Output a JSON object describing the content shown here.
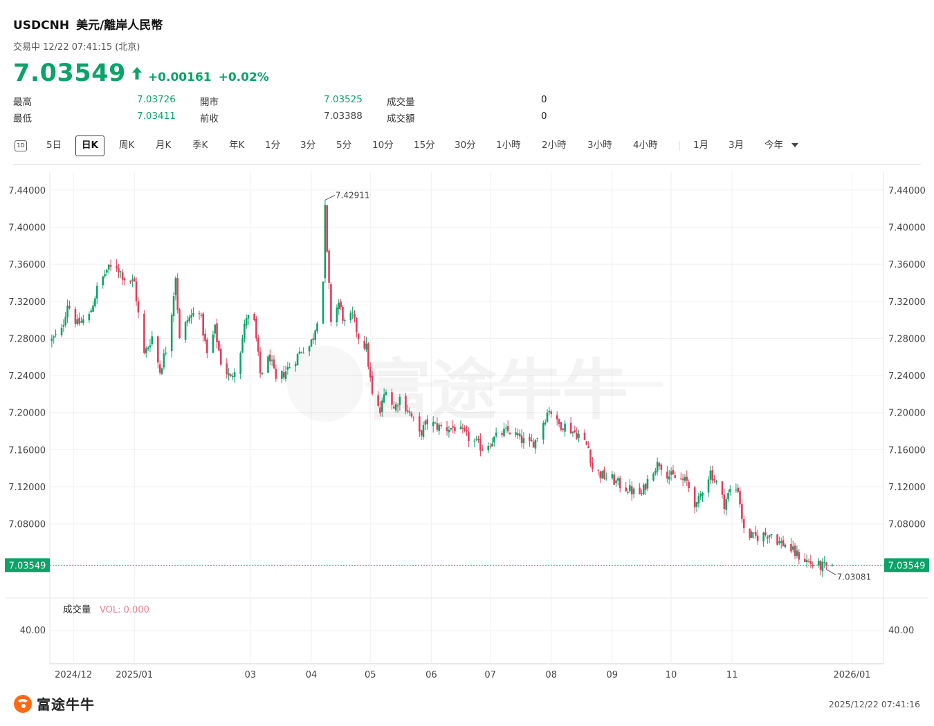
{
  "header": {
    "symbol": "USDCNH",
    "name": "美元/離岸人民幣",
    "status": "交易中 12/22 07:41:15 (北京)",
    "price": "7.03549",
    "change": "+0.00161",
    "change_pct": "+0.02%",
    "up_color": "#0ba367",
    "down_color": "#e23d5b"
  },
  "stats": [
    {
      "label": "最高",
      "value": "7.03726",
      "tone": "green"
    },
    {
      "label": "最低",
      "value": "7.03411",
      "tone": "green"
    },
    {
      "label": "開市",
      "value": "7.03525",
      "tone": "green"
    },
    {
      "label": "前收",
      "value": "7.03388",
      "tone": "gray"
    },
    {
      "label": "成交量",
      "value": "0",
      "tone": "dark"
    },
    {
      "label": "成交額",
      "value": "0",
      "tone": "dark"
    }
  ],
  "toolbar": {
    "d1_icon": "1D",
    "items": [
      "5日",
      "日K",
      "周K",
      "月K",
      "季K",
      "年K",
      "1分",
      "3分",
      "5分",
      "10分",
      "15分",
      "30分",
      "1小時",
      "2小時",
      "3小時",
      "4小時",
      "1月",
      "3月",
      "今年"
    ],
    "active": "日K"
  },
  "volume_panel": {
    "label": "成交量",
    "vol_text": "VOL: 0.000",
    "tick": "40.00"
  },
  "footer": {
    "brand": "富途牛牛",
    "timestamp": "2025/12/22 07:41:16"
  },
  "chart_data": {
    "type": "candlestick",
    "ylim": [
      7.0,
      7.46
    ],
    "y_ticks": [
      "7.44000",
      "7.40000",
      "7.36000",
      "7.32000",
      "7.28000",
      "7.24000",
      "7.20000",
      "7.16000",
      "7.12000",
      "7.08000"
    ],
    "y_tick_values": [
      7.44,
      7.4,
      7.36,
      7.32,
      7.28,
      7.24,
      7.2,
      7.16,
      7.12,
      7.08
    ],
    "x_labels": [
      "2024/12",
      "2025/01",
      "03",
      "04",
      "05",
      "06",
      "07",
      "08",
      "09",
      "10",
      "11",
      "2026/01"
    ],
    "x_label_dates": [
      "2024-12-01",
      "2025-01-01",
      "2025-03-01",
      "2025-04-01",
      "2025-05-01",
      "2025-06-01",
      "2025-07-01",
      "2025-08-01",
      "2025-09-01",
      "2025-10-01",
      "2025-11-01",
      "2026-01-01"
    ],
    "date_range": [
      "2024-11-19",
      "2026-01-17"
    ],
    "current_price": 7.03549,
    "current_price_label": "7.03549",
    "max_annotation": {
      "date": "2025-04-08",
      "value": 7.42911,
      "label": "7.42911"
    },
    "min_annotation": {
      "date": "2025-12-19",
      "value": 7.03081,
      "label": "7.03081"
    },
    "close_path": [
      [
        "2024-11-20",
        7.278
      ],
      [
        "2024-11-25",
        7.288
      ],
      [
        "2024-11-28",
        7.318
      ],
      [
        "2024-12-03",
        7.295
      ],
      [
        "2024-12-09",
        7.304
      ],
      [
        "2024-12-13",
        7.333
      ],
      [
        "2024-12-18",
        7.354
      ],
      [
        "2024-12-23",
        7.358
      ],
      [
        "2024-12-27",
        7.345
      ],
      [
        "2025-01-01",
        7.34
      ],
      [
        "2025-01-03",
        7.306
      ],
      [
        "2025-01-06",
        7.262
      ],
      [
        "2025-01-10",
        7.282
      ],
      [
        "2025-01-14",
        7.245
      ],
      [
        "2025-01-17",
        7.268
      ],
      [
        "2025-01-20",
        7.31
      ],
      [
        "2025-01-22",
        7.348
      ],
      [
        "2025-01-24",
        7.278
      ],
      [
        "2025-01-28",
        7.3
      ],
      [
        "2025-02-03",
        7.312
      ],
      [
        "2025-02-07",
        7.262
      ],
      [
        "2025-02-11",
        7.29
      ],
      [
        "2025-02-14",
        7.255
      ],
      [
        "2025-02-19",
        7.236
      ],
      [
        "2025-02-24",
        7.268
      ],
      [
        "2025-02-27",
        7.304
      ],
      [
        "2025-03-03",
        7.296
      ],
      [
        "2025-03-06",
        7.242
      ],
      [
        "2025-03-11",
        7.26
      ],
      [
        "2025-03-14",
        7.233
      ],
      [
        "2025-03-19",
        7.245
      ],
      [
        "2025-03-24",
        7.258
      ],
      [
        "2025-03-27",
        7.268
      ],
      [
        "2025-03-31",
        7.272
      ],
      [
        "2025-04-02",
        7.282
      ],
      [
        "2025-04-04",
        7.302
      ],
      [
        "2025-04-07",
        7.342
      ],
      [
        "2025-04-08",
        7.42
      ],
      [
        "2025-04-09",
        7.37
      ],
      [
        "2025-04-11",
        7.3
      ],
      [
        "2025-04-15",
        7.318
      ],
      [
        "2025-04-18",
        7.296
      ],
      [
        "2025-04-22",
        7.304
      ],
      [
        "2025-04-25",
        7.282
      ],
      [
        "2025-04-29",
        7.27
      ],
      [
        "2025-05-02",
        7.218
      ],
      [
        "2025-05-06",
        7.2
      ],
      [
        "2025-05-09",
        7.228
      ],
      [
        "2025-05-13",
        7.204
      ],
      [
        "2025-05-16",
        7.216
      ],
      [
        "2025-05-21",
        7.2
      ],
      [
        "2025-05-26",
        7.176
      ],
      [
        "2025-05-30",
        7.19
      ],
      [
        "2025-06-04",
        7.185
      ],
      [
        "2025-06-09",
        7.183
      ],
      [
        "2025-06-13",
        7.184
      ],
      [
        "2025-06-18",
        7.176
      ],
      [
        "2025-06-23",
        7.168
      ],
      [
        "2025-06-27",
        7.162
      ],
      [
        "2025-07-02",
        7.17
      ],
      [
        "2025-07-07",
        7.178
      ],
      [
        "2025-07-11",
        7.18
      ],
      [
        "2025-07-16",
        7.172
      ],
      [
        "2025-07-21",
        7.165
      ],
      [
        "2025-07-24",
        7.17
      ],
      [
        "2025-07-28",
        7.19
      ],
      [
        "2025-07-31",
        7.205
      ],
      [
        "2025-08-04",
        7.188
      ],
      [
        "2025-08-08",
        7.186
      ],
      [
        "2025-08-12",
        7.18
      ],
      [
        "2025-08-15",
        7.176
      ],
      [
        "2025-08-20",
        7.162
      ],
      [
        "2025-08-22",
        7.14
      ],
      [
        "2025-08-27",
        7.132
      ],
      [
        "2025-09-01",
        7.128
      ],
      [
        "2025-09-05",
        7.122
      ],
      [
        "2025-09-09",
        7.118
      ],
      [
        "2025-09-12",
        7.114
      ],
      [
        "2025-09-16",
        7.112
      ],
      [
        "2025-09-18",
        7.122
      ],
      [
        "2025-09-22",
        7.14
      ],
      [
        "2025-09-25",
        7.146
      ],
      [
        "2025-09-30",
        7.132
      ],
      [
        "2025-10-09",
        7.125
      ],
      [
        "2025-10-14",
        7.098
      ],
      [
        "2025-10-17",
        7.118
      ],
      [
        "2025-10-21",
        7.136
      ],
      [
        "2025-10-24",
        7.124
      ],
      [
        "2025-10-28",
        7.102
      ],
      [
        "2025-10-31",
        7.116
      ],
      [
        "2025-11-04",
        7.118
      ],
      [
        "2025-11-07",
        7.072
      ],
      [
        "2025-11-12",
        7.065
      ],
      [
        "2025-11-17",
        7.068
      ],
      [
        "2025-11-21",
        7.07
      ],
      [
        "2025-11-25",
        7.06
      ],
      [
        "2025-11-28",
        7.058
      ],
      [
        "2025-12-03",
        7.048
      ],
      [
        "2025-12-09",
        7.04
      ],
      [
        "2025-12-12",
        7.036
      ],
      [
        "2025-12-17",
        7.034
      ],
      [
        "2025-12-19",
        7.034
      ],
      [
        "2025-12-22",
        7.0355
      ]
    ]
  }
}
